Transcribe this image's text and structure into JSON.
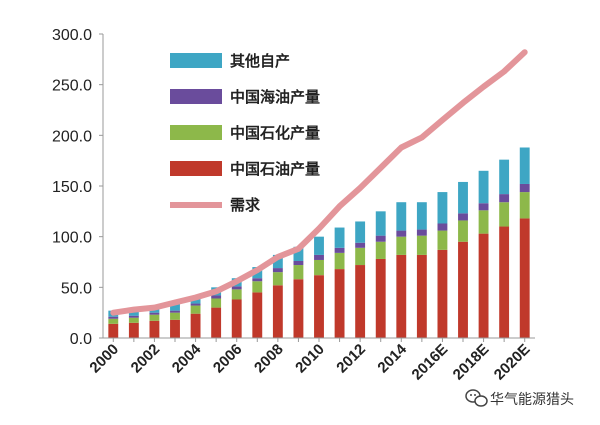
{
  "chart_data": {
    "type": "bar",
    "stacked": true,
    "categories": [
      "2000",
      "2001",
      "2002",
      "2003",
      "2004",
      "2005",
      "2006",
      "2007",
      "2008",
      "2009",
      "2010",
      "2011",
      "2012",
      "2013",
      "2014",
      "2015",
      "2016E",
      "2017E",
      "2018E",
      "2019E",
      "2020E"
    ],
    "x_tick_labels": [
      "2000",
      "2002",
      "2004",
      "2006",
      "2008",
      "2010",
      "2012",
      "2014",
      "2016E",
      "2018E",
      "2020E"
    ],
    "ylim": [
      0,
      300
    ],
    "y_ticks": [
      "0.0",
      "50.0",
      "100.0",
      "150.0",
      "200.0",
      "250.0",
      "300.0"
    ],
    "series": [
      {
        "name": "中国石油产量",
        "type": "bar",
        "color": "#c0392b",
        "values": [
          14,
          15,
          17,
          18,
          24,
          30,
          38,
          45,
          52,
          58,
          62,
          68,
          72,
          78,
          82,
          82,
          87,
          95,
          103,
          110,
          118
        ]
      },
      {
        "name": "中国石化产量",
        "type": "bar",
        "color": "#8db84a",
        "values": [
          5,
          5,
          6,
          7,
          8,
          9,
          10,
          11,
          13,
          14,
          15,
          16,
          17,
          17,
          18,
          19,
          19,
          21,
          23,
          24,
          26
        ]
      },
      {
        "name": "中国海油产量",
        "type": "bar",
        "color": "#6a4c9c",
        "values": [
          2,
          2,
          2,
          2,
          2,
          3,
          3,
          3,
          4,
          4,
          5,
          5,
          5,
          6,
          6,
          6,
          7,
          7,
          7,
          8,
          8
        ]
      },
      {
        "name": "其他自产",
        "type": "bar",
        "color": "#3ea6c4",
        "values": [
          6,
          6,
          6,
          7,
          7,
          8,
          8,
          11,
          13,
          14,
          18,
          20,
          21,
          24,
          28,
          27,
          31,
          31,
          32,
          34,
          36
        ]
      },
      {
        "name": "需求",
        "type": "line",
        "color": "#e3959a",
        "values": [
          25,
          28,
          30,
          35,
          40,
          46,
          56,
          67,
          80,
          88,
          108,
          130,
          148,
          168,
          188,
          198,
          215,
          232,
          248,
          263,
          282
        ]
      }
    ],
    "legend_order": [
      "其他自产",
      "中国海油产量",
      "中国石化产量",
      "中国石油产量",
      "需求"
    ]
  },
  "watermark": {
    "text": "华气能源猎头",
    "icon": "wechat-icon"
  }
}
